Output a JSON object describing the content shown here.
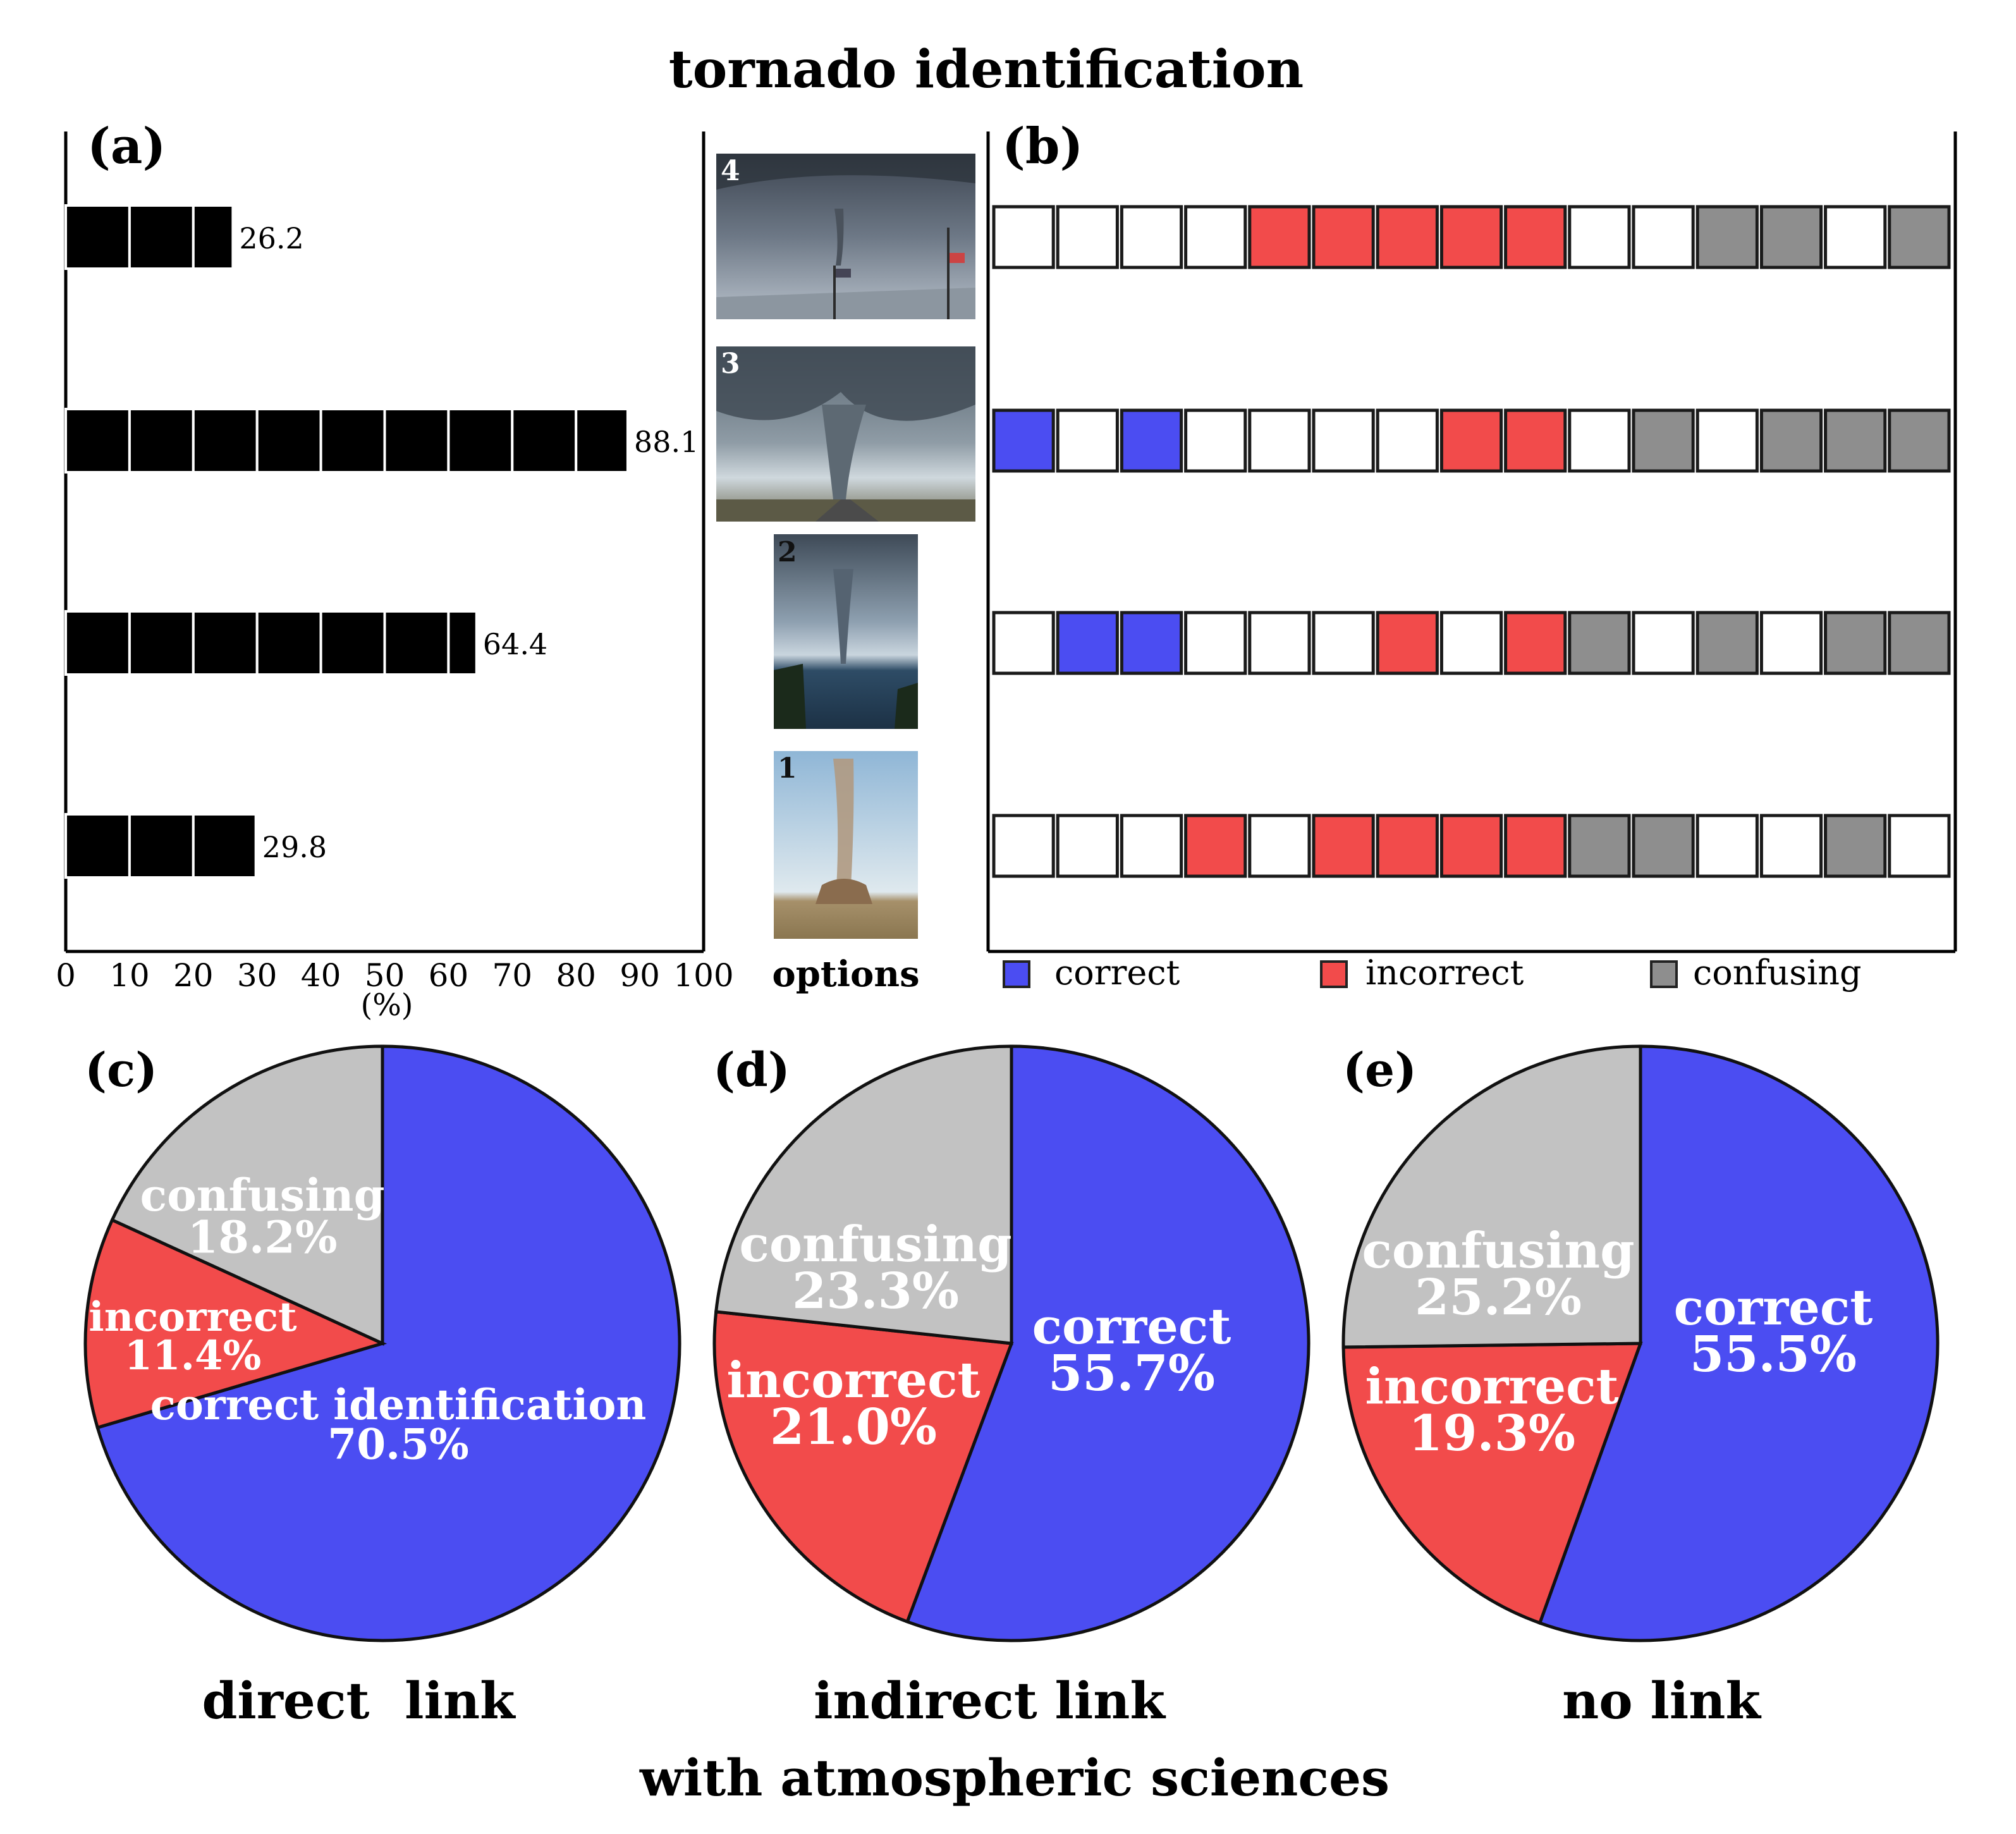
{
  "figure": {
    "title": "tornado identification",
    "group_caption": "with atmospheric sciences",
    "options_label": "options",
    "colors": {
      "correct": "#4b4df2",
      "incorrect": "#f24b4b",
      "confusing": "#8e8e8e",
      "confusing_pie": "#c2c2c2",
      "blank": "#ffffff",
      "bar": "#000000"
    }
  },
  "chart_data": [
    {
      "panel": "(a)",
      "type": "bar",
      "orientation": "horizontal",
      "categories": [
        "4",
        "3",
        "2",
        "1"
      ],
      "values": [
        26.2,
        88.1,
        64.4,
        29.8
      ],
      "value_labels": [
        "26.2",
        "88.1",
        "64.4",
        "29.8"
      ],
      "xlabel": "(%)",
      "xlim": [
        0,
        100
      ],
      "xticks": [
        "0",
        "10",
        "20",
        "30",
        "40",
        "50",
        "60",
        "70",
        "80",
        "90",
        "100"
      ]
    },
    {
      "panel": "(b)",
      "type": "heatmap",
      "rows": [
        "4",
        "3",
        "2",
        "1"
      ],
      "cells": [
        [
          "blank",
          "blank",
          "blank",
          "blank",
          "incorrect",
          "incorrect",
          "incorrect",
          "incorrect",
          "incorrect",
          "blank",
          "blank",
          "confusing",
          "confusing",
          "blank",
          "confusing"
        ],
        [
          "correct",
          "blank",
          "correct",
          "blank",
          "blank",
          "blank",
          "blank",
          "incorrect",
          "incorrect",
          "blank",
          "confusing",
          "blank",
          "confusing",
          "confusing",
          "confusing"
        ],
        [
          "blank",
          "correct",
          "correct",
          "blank",
          "blank",
          "blank",
          "incorrect",
          "blank",
          "incorrect",
          "confusing",
          "blank",
          "confusing",
          "blank",
          "confusing",
          "confusing"
        ],
        [
          "blank",
          "blank",
          "blank",
          "incorrect",
          "blank",
          "incorrect",
          "incorrect",
          "incorrect",
          "incorrect",
          "confusing",
          "confusing",
          "blank",
          "blank",
          "confusing",
          "blank"
        ]
      ],
      "legend": [
        "correct",
        "incorrect",
        "confusing"
      ]
    },
    {
      "panel": "(c)",
      "type": "pie",
      "caption": "direct  link",
      "slices": [
        {
          "name": "correct identification",
          "pct": "70.5%",
          "value": 70.5,
          "color": "correct"
        },
        {
          "name": "incorrect",
          "pct": "11.4%",
          "value": 11.4,
          "color": "incorrect"
        },
        {
          "name": "confusing",
          "pct": "18.2%",
          "value": 18.2,
          "color": "confusing_pie"
        }
      ]
    },
    {
      "panel": "(d)",
      "type": "pie",
      "caption": "indirect link",
      "slices": [
        {
          "name": "correct",
          "pct": "55.7%",
          "value": 55.7,
          "color": "correct"
        },
        {
          "name": "incorrect",
          "pct": "21.0%",
          "value": 21.0,
          "color": "incorrect"
        },
        {
          "name": "confusing",
          "pct": "23.3%",
          "value": 23.3,
          "color": "confusing_pie"
        }
      ]
    },
    {
      "panel": "(e)",
      "type": "pie",
      "caption": "no link",
      "slices": [
        {
          "name": "correct",
          "pct": "55.5%",
          "value": 55.5,
          "color": "correct"
        },
        {
          "name": "incorrect",
          "pct": "19.3%",
          "value": 19.3,
          "color": "incorrect"
        },
        {
          "name": "confusing",
          "pct": "25.2%",
          "value": 25.2,
          "color": "confusing_pie"
        }
      ]
    }
  ]
}
